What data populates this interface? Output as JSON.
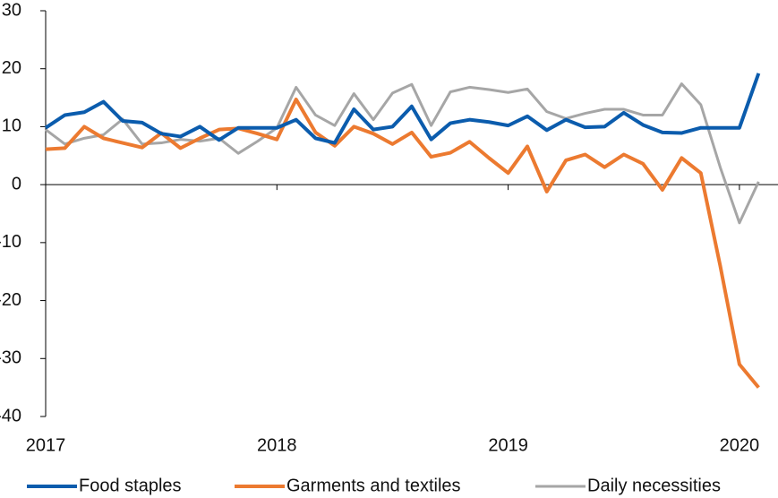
{
  "chart_data": {
    "type": "line",
    "x": [
      2017,
      2017.083,
      2017.167,
      2017.25,
      2017.333,
      2017.417,
      2017.5,
      2017.583,
      2017.667,
      2017.75,
      2017.833,
      2017.917,
      2018,
      2018.083,
      2018.167,
      2018.25,
      2018.333,
      2018.417,
      2018.5,
      2018.583,
      2018.667,
      2018.75,
      2018.833,
      2018.917,
      2019,
      2019.083,
      2019.167,
      2019.25,
      2019.333,
      2019.417,
      2019.5,
      2019.583,
      2019.667,
      2019.75,
      2019.833,
      2019.917,
      2020,
      2020.083
    ],
    "series": [
      {
        "name": "Food staples",
        "color": "#0b5cad",
        "values": [
          9.8,
          12,
          12.5,
          14.3,
          11,
          10.7,
          8.8,
          8.3,
          10,
          7.7,
          9.8,
          9.8,
          9.8,
          11.2,
          8,
          7.2,
          13,
          9.5,
          10,
          13.5,
          7.8,
          10.6,
          11.2,
          10.8,
          10.2,
          11.8,
          9.4,
          11.2,
          9.9,
          10,
          12.4,
          10.3,
          9,
          8.9,
          9.8,
          9.8,
          9.8,
          19.2
        ]
      },
      {
        "name": "Garments and textiles",
        "color": "#ec7a30",
        "values": [
          6.1,
          6.3,
          10,
          8,
          7.2,
          6.4,
          8.9,
          6.3,
          8,
          9.5,
          9.7,
          8.8,
          7.8,
          14.7,
          9,
          6.7,
          10,
          8.8,
          7,
          9,
          4.8,
          5.5,
          7.4,
          4.6,
          2,
          6.6,
          -1.2,
          4.2,
          5.2,
          3,
          5.2,
          3.6,
          -0.9,
          4.6,
          2,
          -14,
          -31,
          -35
        ]
      },
      {
        "name": "Daily necessities",
        "color": "#a6a6a6",
        "values": [
          9.5,
          7,
          8,
          8.6,
          11.3,
          7,
          7.2,
          7.8,
          7.5,
          8,
          5.4,
          7.5,
          9.8,
          16.8,
          12,
          10.2,
          15.7,
          11.2,
          15.8,
          17.3,
          10.2,
          16,
          16.8,
          16.4,
          15.9,
          16.5,
          12.6,
          11.4,
          12.3,
          13,
          13,
          12,
          12,
          17.4,
          13.8,
          3,
          -6.6,
          0.5
        ]
      }
    ],
    "xlim": [
      2017,
      2020.17
    ],
    "xticks": [
      2017,
      2018,
      2019,
      2020
    ],
    "ylim": [
      -40,
      30
    ],
    "yticks": [
      -40,
      -30,
      -20,
      -10,
      0,
      10,
      20,
      30
    ],
    "legend": "bottom"
  }
}
